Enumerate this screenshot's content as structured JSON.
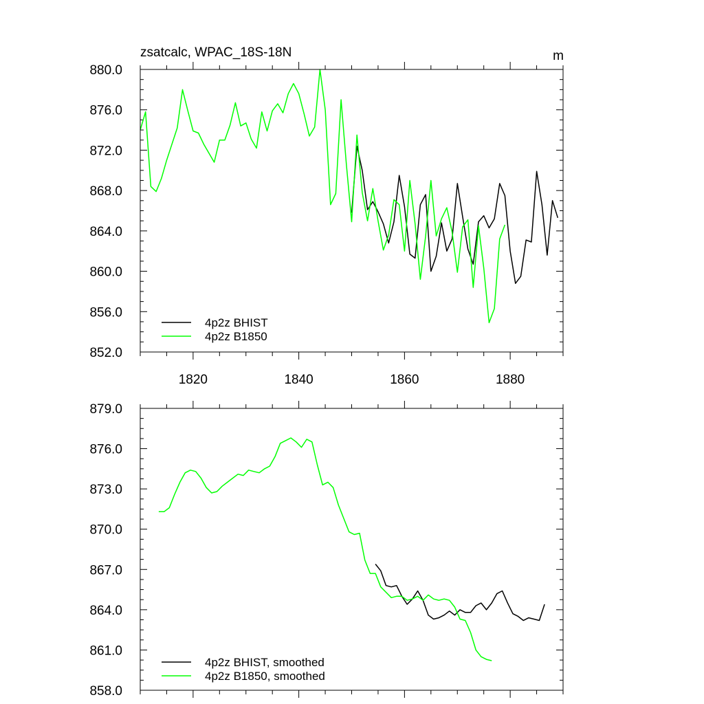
{
  "colors": {
    "bhist": "#000000",
    "b1850": "#00ff00"
  },
  "chart_data": [
    {
      "type": "line",
      "title": "zsatcalc, WPAC_18S-18N",
      "units": "m",
      "xlim": [
        1810,
        1890
      ],
      "ylim": [
        852,
        880
      ],
      "yticks": [
        852,
        856,
        860,
        864,
        868,
        872,
        876,
        880
      ],
      "ytick_labels": [
        "852.0",
        "856.0",
        "860.0",
        "864.0",
        "868.0",
        "872.0",
        "876.0",
        "880.0"
      ],
      "xticks": [
        1820,
        1840,
        1860,
        1880
      ],
      "xtick_labels": [
        "1820",
        "1840",
        "1860",
        "1880"
      ],
      "legend_position": "bottom-left",
      "series": [
        {
          "name": "4p2z BHIST",
          "color": "#000000",
          "x": [
            1850,
            1851,
            1852,
            1853,
            1854,
            1855,
            1856,
            1857,
            1858,
            1859,
            1860,
            1861,
            1862,
            1863,
            1864,
            1865,
            1866,
            1867,
            1868,
            1869,
            1870,
            1871,
            1872,
            1873,
            1874,
            1875,
            1876,
            1877,
            1878,
            1879,
            1880,
            1881,
            1882,
            1883,
            1884,
            1885,
            1886,
            1887,
            1888,
            1889
          ],
          "values": [
            865.8,
            872.4,
            870.0,
            866.1,
            866.9,
            865.9,
            864.7,
            862.8,
            864.9,
            869.5,
            866.4,
            861.7,
            861.3,
            866.6,
            867.6,
            860.0,
            861.5,
            864.8,
            862.0,
            863.2,
            868.7,
            865.4,
            862.2,
            860.7,
            864.9,
            865.5,
            864.3,
            865.2,
            868.7,
            867.5,
            862.0,
            858.8,
            859.5,
            863.1,
            862.9,
            869.9,
            866.6,
            861.6,
            867.0,
            865.3
          ]
        },
        {
          "name": "4p2z B1850",
          "color": "#00ff00",
          "x": [
            1810,
            1811,
            1812,
            1813,
            1814,
            1815,
            1816,
            1817,
            1818,
            1819,
            1820,
            1821,
            1822,
            1823,
            1824,
            1825,
            1826,
            1827,
            1828,
            1829,
            1830,
            1831,
            1832,
            1833,
            1834,
            1835,
            1836,
            1837,
            1838,
            1839,
            1840,
            1841,
            1842,
            1843,
            1844,
            1845,
            1846,
            1847,
            1848,
            1849,
            1850,
            1851,
            1852,
            1853,
            1854,
            1855,
            1856,
            1857,
            1858,
            1859,
            1860,
            1861,
            1862,
            1863,
            1864,
            1865,
            1866,
            1867,
            1868,
            1869,
            1870,
            1871,
            1872,
            1873,
            1874,
            1875,
            1876,
            1877,
            1878,
            1879
          ],
          "values": [
            874.0,
            875.8,
            868.4,
            867.9,
            869.2,
            871.0,
            872.6,
            874.2,
            878.0,
            875.9,
            873.9,
            873.7,
            872.6,
            871.7,
            870.8,
            873.0,
            873.0,
            874.5,
            876.7,
            874.4,
            874.7,
            873.1,
            872.2,
            875.8,
            873.9,
            875.9,
            876.6,
            875.7,
            877.6,
            878.6,
            877.6,
            875.6,
            873.4,
            874.3,
            880.0,
            876.0,
            866.6,
            867.7,
            877.0,
            870.6,
            864.9,
            873.5,
            867.8,
            865.0,
            868.2,
            865.0,
            862.1,
            863.6,
            867.1,
            866.6,
            862.0,
            869.0,
            864.7,
            859.2,
            863.5,
            869.0,
            863.5,
            865.2,
            866.3,
            863.9,
            859.9,
            864.4,
            865.1,
            858.4,
            864.5,
            860.3,
            854.9,
            856.3,
            863.2,
            864.6
          ]
        }
      ]
    },
    {
      "type": "line",
      "title": "",
      "xlim": [
        1810,
        1890
      ],
      "ylim": [
        858,
        879
      ],
      "yticks": [
        858,
        861,
        864,
        867,
        870,
        873,
        876,
        879
      ],
      "ytick_labels": [
        "858.0",
        "861.0",
        "864.0",
        "867.0",
        "870.0",
        "873.0",
        "876.0",
        "879.0"
      ],
      "xticks": [
        1820,
        1840,
        1860,
        1880
      ],
      "xtick_labels": [],
      "legend_position": "bottom-left",
      "series": [
        {
          "name": "4p2z BHIST, smoothed",
          "color": "#000000",
          "x": [
            1854.5,
            1855.5,
            1856.5,
            1857.5,
            1858.5,
            1859.5,
            1860.5,
            1861.5,
            1862.5,
            1863.5,
            1864.5,
            1865.5,
            1866.5,
            1867.5,
            1868.5,
            1869.5,
            1870.5,
            1871.5,
            1872.5,
            1873.5,
            1874.5,
            1875.5,
            1876.5,
            1877.5,
            1878.5,
            1879.5,
            1880.5,
            1881.5,
            1882.5,
            1883.5,
            1884.5,
            1885.5,
            1886.5
          ],
          "values": [
            867.4,
            866.9,
            865.8,
            865.7,
            865.8,
            865.0,
            864.4,
            864.8,
            865.4,
            864.7,
            863.6,
            863.3,
            863.4,
            863.6,
            863.9,
            863.6,
            864.0,
            863.8,
            863.8,
            864.3,
            864.5,
            864.0,
            864.5,
            865.2,
            865.4,
            864.5,
            863.7,
            863.5,
            863.2,
            863.4,
            863.3,
            863.2,
            864.4
          ]
        },
        {
          "name": "4p2z B1850, smoothed",
          "color": "#00ff00",
          "x": [
            1813.5,
            1814.5,
            1815.5,
            1816.5,
            1817.5,
            1818.5,
            1819.5,
            1820.5,
            1821.5,
            1822.5,
            1823.5,
            1824.5,
            1825.5,
            1826.5,
            1827.5,
            1828.5,
            1829.5,
            1830.5,
            1831.5,
            1832.5,
            1833.5,
            1834.5,
            1835.5,
            1836.5,
            1837.5,
            1838.5,
            1839.5,
            1840.5,
            1841.5,
            1842.5,
            1843.5,
            1844.5,
            1845.5,
            1846.5,
            1847.5,
            1848.5,
            1849.5,
            1850.5,
            1851.5,
            1852.5,
            1853.5,
            1854.5,
            1855.5,
            1856.5,
            1857.5,
            1858.5,
            1859.5,
            1860.5,
            1861.5,
            1862.5,
            1863.5,
            1864.5,
            1865.5,
            1866.5,
            1867.5,
            1868.5,
            1869.5,
            1870.5,
            1871.5,
            1872.5,
            1873.5,
            1874.5,
            1875.5,
            1876.5
          ],
          "values": [
            871.3,
            871.3,
            871.6,
            872.6,
            873.5,
            874.2,
            874.4,
            874.3,
            873.8,
            873.1,
            872.7,
            872.8,
            873.2,
            873.5,
            873.8,
            874.1,
            874.0,
            874.4,
            874.3,
            874.2,
            874.5,
            874.7,
            875.4,
            876.4,
            876.6,
            876.8,
            876.5,
            876.1,
            876.7,
            876.5,
            874.8,
            873.3,
            873.5,
            873.1,
            871.8,
            870.8,
            869.8,
            869.6,
            869.7,
            867.7,
            866.7,
            866.7,
            865.7,
            865.3,
            864.9,
            865.0,
            865.0,
            864.7,
            864.8,
            865.0,
            864.7,
            865.1,
            864.8,
            864.7,
            864.8,
            864.7,
            864.2,
            863.3,
            863.2,
            862.3,
            861.0,
            860.5,
            860.3,
            860.2
          ]
        }
      ]
    }
  ]
}
